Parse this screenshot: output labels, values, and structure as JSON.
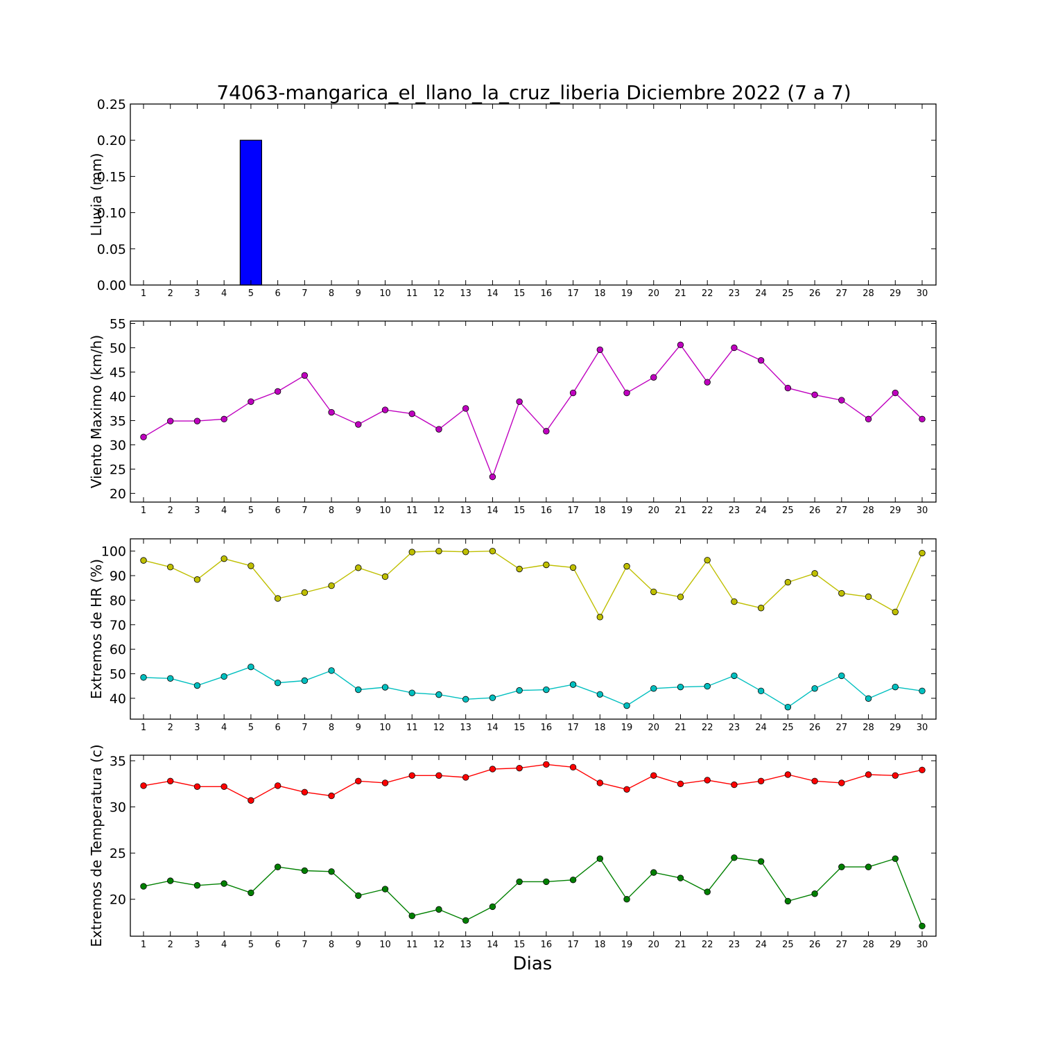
{
  "chart_data": {
    "title": "74063-mangarica_el_llano_la_cruz_liberia Diciembre 2022  (7 a 7)",
    "xlabel": "Dias",
    "days": [
      1,
      2,
      3,
      4,
      5,
      6,
      7,
      8,
      9,
      10,
      11,
      12,
      13,
      14,
      15,
      16,
      17,
      18,
      19,
      20,
      21,
      22,
      23,
      24,
      25,
      26,
      27,
      28,
      29,
      30
    ],
    "panels": [
      {
        "type": "bar",
        "ylabel": "Lluvia (mm)",
        "ylim": [
          0,
          0.25
        ],
        "yticks": [
          0.0,
          0.05,
          0.1,
          0.15,
          0.2,
          0.25
        ],
        "yticklabels": [
          "0.00",
          "0.05",
          "0.10",
          "0.15",
          "0.20",
          "0.25"
        ],
        "series": [
          {
            "color": "#0000ff",
            "values": [
              0,
              0,
              0,
              0,
              0.2,
              0,
              0,
              0,
              0,
              0,
              0,
              0,
              0,
              0,
              0,
              0,
              0,
              0,
              0,
              0,
              0,
              0,
              0,
              0,
              0,
              0,
              0,
              0,
              0,
              0
            ]
          }
        ]
      },
      {
        "type": "line",
        "ylabel": "Viento Maximo (km/h)",
        "ylim": [
          18.2,
          55.5
        ],
        "yticks": [
          20,
          25,
          30,
          35,
          40,
          45,
          50,
          55
        ],
        "yticklabels": [
          "20",
          "25",
          "30",
          "35",
          "40",
          "45",
          "50",
          "55"
        ],
        "series": [
          {
            "color": "#bf00bf",
            "values": [
              31.6,
              34.9,
              34.9,
              35.3,
              38.9,
              41.0,
              44.3,
              36.7,
              34.2,
              37.2,
              36.4,
              33.2,
              37.5,
              23.4,
              38.9,
              32.8,
              40.7,
              49.6,
              40.7,
              43.9,
              50.6,
              42.9,
              50.0,
              47.4,
              41.7,
              40.3,
              39.2,
              35.3,
              40.7,
              35.3
            ]
          }
        ]
      },
      {
        "type": "line",
        "ylabel": "Extremos de HR (%)",
        "ylim": [
          31.5,
          105
        ],
        "yticks": [
          40,
          50,
          60,
          70,
          80,
          90,
          100
        ],
        "yticklabels": [
          "40",
          "50",
          "60",
          "70",
          "80",
          "90",
          "100"
        ],
        "series": [
          {
            "color": "#bfbf00",
            "values": [
              96.2,
              93.5,
              88.4,
              96.9,
              94.0,
              80.7,
              83.1,
              85.9,
              93.2,
              89.6,
              99.6,
              100.0,
              99.7,
              100.0,
              92.7,
              94.4,
              93.3,
              73.1,
              93.8,
              83.4,
              81.3,
              96.3,
              79.4,
              76.8,
              87.3,
              90.9,
              82.8,
              81.4,
              75.2,
              99.2
            ]
          },
          {
            "color": "#00bfbf",
            "values": [
              48.5,
              48.1,
              45.2,
              48.9,
              52.8,
              46.3,
              47.2,
              51.3,
              43.5,
              44.5,
              42.2,
              41.5,
              39.6,
              40.2,
              43.2,
              43.5,
              45.6,
              41.6,
              37.0,
              44.0,
              44.6,
              44.9,
              49.2,
              43.0,
              36.4,
              44.0,
              49.2,
              39.9,
              44.6,
              43.0
            ]
          }
        ]
      },
      {
        "type": "line",
        "ylabel": "Extremos de Temperatura (c)",
        "ylim": [
          16.0,
          35.6
        ],
        "yticks": [
          20,
          25,
          30,
          35
        ],
        "yticklabels": [
          "20",
          "25",
          "30",
          "35"
        ],
        "series": [
          {
            "color": "#ff0000",
            "values": [
              32.3,
              32.8,
              32.2,
              32.2,
              30.7,
              32.3,
              31.6,
              31.2,
              32.8,
              32.6,
              33.4,
              33.4,
              33.2,
              34.1,
              34.2,
              34.6,
              34.3,
              32.6,
              31.9,
              33.4,
              32.5,
              32.9,
              32.4,
              32.8,
              33.5,
              32.8,
              32.6,
              33.5,
              33.4,
              34.0
            ]
          },
          {
            "color": "#008000",
            "values": [
              21.4,
              22.0,
              21.5,
              21.7,
              20.7,
              23.5,
              23.1,
              23.0,
              20.4,
              21.1,
              18.2,
              18.9,
              17.7,
              19.2,
              21.9,
              21.9,
              22.1,
              24.4,
              20.0,
              22.9,
              22.3,
              20.8,
              24.5,
              24.1,
              19.8,
              20.6,
              23.5,
              23.5,
              24.4,
              17.1
            ]
          }
        ]
      }
    ]
  }
}
